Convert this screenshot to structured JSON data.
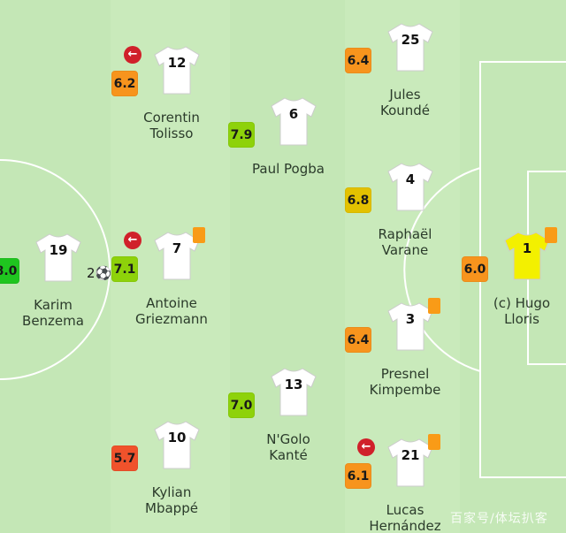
{
  "rating_colors": {
    "excellent": "#1fc51f",
    "good": "#8ed20a",
    "average": "#e3c100",
    "poor": "#f7941d",
    "bad": "#f0522b"
  },
  "jersey_colors": {
    "outfield": "#ffffff",
    "goalkeeper": "#f3f000"
  },
  "players": [
    {
      "id": "benzema",
      "number": "19",
      "name_line1": "Karim",
      "name_line2": "Benzema",
      "rating": "8.0",
      "rating_level": "excellent",
      "goals": "2",
      "goal_icon": "football-icon"
    },
    {
      "id": "tolisso",
      "number": "12",
      "name_line1": "Corentin",
      "name_line2": "Tolisso",
      "rating": "6.2",
      "rating_level": "poor",
      "substituted": true
    },
    {
      "id": "griezmann",
      "number": "7",
      "name_line1": "Antoine",
      "name_line2": "Griezmann",
      "rating": "7.1",
      "rating_level": "good",
      "substituted": true,
      "yellow_card": true
    },
    {
      "id": "mbappe",
      "number": "10",
      "name_line1": "Kylian",
      "name_line2": "Mbappé",
      "rating": "5.7",
      "rating_level": "bad"
    },
    {
      "id": "pogba",
      "number": "6",
      "name_line1": "Paul Pogba",
      "name_line2": "",
      "rating": "7.9",
      "rating_level": "good"
    },
    {
      "id": "kante",
      "number": "13",
      "name_line1": "N'Golo",
      "name_line2": "Kanté",
      "rating": "7.0",
      "rating_level": "good"
    },
    {
      "id": "kounde",
      "number": "25",
      "name_line1": "Jules",
      "name_line2": "Koundé",
      "rating": "6.4",
      "rating_level": "poor"
    },
    {
      "id": "varane",
      "number": "4",
      "name_line1": "Raphaël",
      "name_line2": "Varane",
      "rating": "6.8",
      "rating_level": "average"
    },
    {
      "id": "kimpembe",
      "number": "3",
      "name_line1": "Presnel",
      "name_line2": "Kimpembe",
      "rating": "6.4",
      "rating_level": "poor",
      "yellow_card": true
    },
    {
      "id": "hernandez",
      "number": "21",
      "name_line1": "Lucas",
      "name_line2": "Hernández",
      "rating": "6.1",
      "rating_level": "poor",
      "substituted": true,
      "yellow_card": true
    },
    {
      "id": "lloris",
      "number": "1",
      "name_line1": "(c) Hugo",
      "name_line2": "Lloris",
      "rating": "6.0",
      "rating_level": "poor",
      "goalkeeper": true,
      "yellow_card": true
    }
  ],
  "watermark": "百家号/体坛扒客"
}
